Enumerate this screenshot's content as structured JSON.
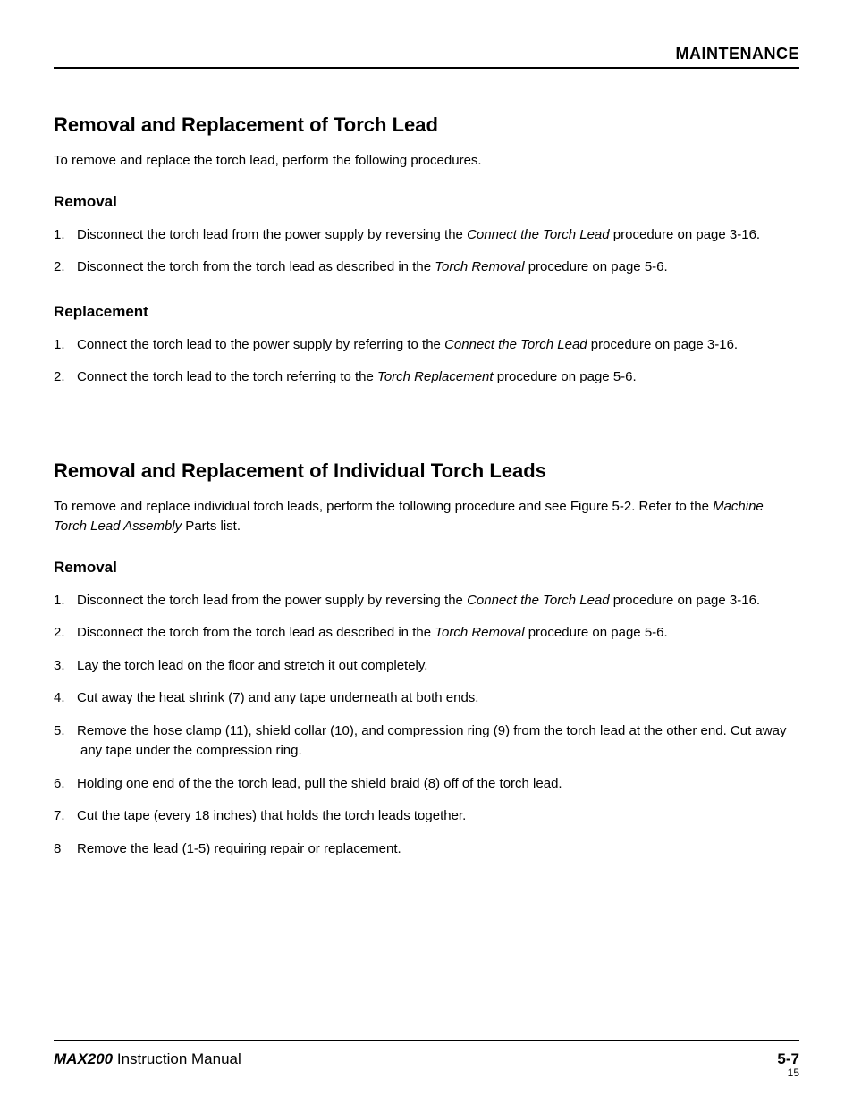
{
  "header": {
    "section_title": "MAINTENANCE"
  },
  "section1": {
    "heading": "Removal and Replacement of Torch Lead",
    "intro": "To remove and replace the torch lead, perform the following procedures.",
    "removal": {
      "heading": "Removal",
      "items": [
        {
          "num": "1.",
          "pre": "Disconnect the torch lead from the power supply by reversing the ",
          "em": "Connect the Torch Lead",
          "post": " procedure on page 3-16."
        },
        {
          "num": "2.",
          "pre": "Disconnect the torch from the torch lead as described in the ",
          "em": "Torch Removal",
          "post": " procedure on page 5-6."
        }
      ]
    },
    "replacement": {
      "heading": "Replacement",
      "items": [
        {
          "num": "1.",
          "pre": "Connect the torch lead to the power supply by referring to the ",
          "em": "Connect the Torch Lead",
          "post": " procedure on page 3-16."
        },
        {
          "num": "2.",
          "pre": "Connect the torch lead to the torch referring to the ",
          "em": "Torch Replacement",
          "post": " procedure on page 5-6."
        }
      ]
    }
  },
  "section2": {
    "heading": "Removal and Replacement of Individual Torch Leads",
    "intro_pre": "To remove and replace individual torch leads, perform the following procedure and  see Figure 5-2. Refer to the ",
    "intro_em": "Machine Torch Lead Assembly",
    "intro_post": " Parts list.",
    "removal": {
      "heading": "Removal",
      "items": [
        {
          "num": "1.",
          "pre": "Disconnect the torch lead from the power supply by reversing the ",
          "em": "Connect the Torch Lead",
          "post": " procedure on page 3-16."
        },
        {
          "num": "2.",
          "pre": "Disconnect the torch from the torch lead as described in the ",
          "em": "Torch Removal",
          "post": " procedure on page 5-6."
        },
        {
          "num": "3.",
          "pre": "Lay the torch lead on the floor and stretch it out completely.",
          "em": "",
          "post": ""
        },
        {
          "num": "4.",
          "pre": "Cut away the heat shrink (7) and any tape underneath at both ends.",
          "em": "",
          "post": ""
        },
        {
          "num": "5.",
          "pre": "Remove the hose clamp (11), shield collar (10), and compression ring (9) from the torch lead at the other end. Cut away any tape under the compression ring.",
          "em": "",
          "post": ""
        },
        {
          "num": "6.",
          "pre": "Holding one end of the the torch lead, pull the shield braid (8) off of the torch lead.",
          "em": "",
          "post": ""
        },
        {
          "num": "7.",
          "pre": "Cut the tape (every 18 inches) that holds the torch leads together.",
          "em": "",
          "post": ""
        },
        {
          "num": "8",
          "pre": "Remove the lead (1-5) requiring repair or replacement.",
          "em": "",
          "post": ""
        }
      ]
    }
  },
  "footer": {
    "brand": "MAX200",
    "doc": "Instruction Manual",
    "page": "5-7",
    "thumb": "15"
  }
}
